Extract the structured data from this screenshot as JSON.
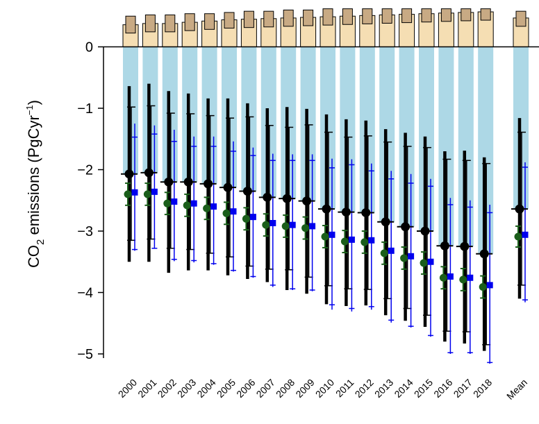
{
  "chart_data": {
    "type": "bar",
    "ylabel": {
      "prefix": "CO",
      "sub": "2",
      "middle": " emissions (PgCyr",
      "sup": "−1",
      "suffix": ")"
    },
    "ylim": [
      -5.2,
      0.62
    ],
    "yticks": [
      0,
      -1,
      -2,
      -3,
      -4,
      -5
    ],
    "ytick_labels": [
      "0",
      "−1",
      "−2",
      "−3",
      "−4",
      "−5"
    ],
    "categories": [
      "2000",
      "2001",
      "2002",
      "2003",
      "2004",
      "2005",
      "2006",
      "2007",
      "2008",
      "2009",
      "2010",
      "2011",
      "2012",
      "2013",
      "2014",
      "2015",
      "2016",
      "2017",
      "2018",
      "Mean"
    ],
    "colors": {
      "sink_bar": "#add8e6",
      "source_bar": "#f5deb3",
      "source_cap": "#c8aa84",
      "black_series": "#000000",
      "green_series": "#1a5e1a",
      "blue_series": "#0000ee",
      "zero_line": "#000000"
    },
    "series": [
      {
        "kind": "bar_positive",
        "values": [
          0.36,
          0.38,
          0.38,
          0.4,
          0.42,
          0.44,
          0.45,
          0.46,
          0.47,
          0.48,
          0.49,
          0.5,
          0.51,
          0.52,
          0.53,
          0.54,
          0.55,
          0.56,
          0.57,
          0.47
        ]
      },
      {
        "kind": "bar_cap_top",
        "values": [
          0.5,
          0.52,
          0.52,
          0.54,
          0.54,
          0.56,
          0.58,
          0.58,
          0.6,
          0.6,
          0.62,
          0.62,
          0.62,
          0.62,
          0.62,
          0.62,
          0.62,
          0.62,
          0.62,
          0.58
        ]
      },
      {
        "kind": "bar_negative",
        "values": [
          -2.07,
          -2.05,
          -2.2,
          -2.2,
          -2.23,
          -2.29,
          -2.35,
          -2.45,
          -2.47,
          -2.51,
          -2.64,
          -2.69,
          -2.7,
          -2.85,
          -2.93,
          -3.0,
          -3.24,
          -3.25,
          -3.37,
          -2.64
        ]
      },
      {
        "kind": "point_black",
        "values": [
          -2.07,
          -2.05,
          -2.2,
          -2.2,
          -2.23,
          -2.29,
          -2.35,
          -2.45,
          -2.47,
          -2.51,
          -2.64,
          -2.69,
          -2.7,
          -2.85,
          -2.93,
          -3.0,
          -3.24,
          -3.25,
          -3.37,
          -2.64
        ],
        "whisker_low": [
          -3.5,
          -3.5,
          -3.68,
          -3.64,
          -3.64,
          -3.72,
          -3.78,
          -3.83,
          -3.96,
          -4.02,
          -4.19,
          -4.22,
          -4.21,
          -4.37,
          -4.46,
          -4.56,
          -4.8,
          -4.83,
          -4.95,
          -4.1
        ],
        "whisker_high": [
          -0.64,
          -0.6,
          -0.72,
          -0.76,
          -0.84,
          -0.84,
          -0.92,
          -1.0,
          -0.98,
          -1.01,
          -1.1,
          -1.18,
          -1.2,
          -1.34,
          -1.4,
          -1.46,
          -1.7,
          -1.69,
          -1.8,
          -1.16
        ],
        "inner_low": [
          -3.15,
          -3.13,
          -3.28,
          -3.3,
          -3.36,
          -3.42,
          -3.57,
          -3.62,
          -3.63,
          -3.75,
          -3.89,
          -3.94,
          -3.95,
          -4.1,
          -4.26,
          -4.37,
          -4.63,
          -4.64,
          -4.85,
          -3.88
        ],
        "inner_high": [
          -0.98,
          -0.96,
          -1.08,
          -1.09,
          -1.12,
          -1.16,
          -1.14,
          -1.28,
          -1.31,
          -1.27,
          -1.39,
          -1.47,
          -1.45,
          -1.55,
          -1.62,
          -1.64,
          -1.83,
          -1.85,
          -1.9,
          -1.39
        ]
      },
      {
        "kind": "point_green",
        "values": [
          -2.4,
          -2.4,
          -2.55,
          -2.58,
          -2.63,
          -2.71,
          -2.8,
          -2.9,
          -2.92,
          -2.95,
          -3.09,
          -3.17,
          -3.18,
          -3.36,
          -3.44,
          -3.52,
          -3.76,
          -3.79,
          -3.91,
          -3.09
        ],
        "err_low": [
          -2.58,
          -2.58,
          -2.73,
          -2.76,
          -2.81,
          -2.89,
          -2.98,
          -3.08,
          -3.1,
          -3.13,
          -3.27,
          -3.35,
          -3.36,
          -3.54,
          -3.62,
          -3.7,
          -3.94,
          -3.97,
          -4.09,
          -3.26
        ],
        "err_high": [
          -2.22,
          -2.22,
          -2.37,
          -2.4,
          -2.45,
          -2.53,
          -2.62,
          -2.72,
          -2.74,
          -2.77,
          -2.91,
          -2.99,
          -3.0,
          -3.18,
          -3.26,
          -3.34,
          -3.58,
          -3.61,
          -3.73,
          -2.92
        ]
      },
      {
        "kind": "point_blue",
        "values": [
          -2.37,
          -2.36,
          -2.52,
          -2.55,
          -2.6,
          -2.68,
          -2.77,
          -2.87,
          -2.9,
          -2.92,
          -3.06,
          -3.14,
          -3.15,
          -3.32,
          -3.41,
          -3.5,
          -3.74,
          -3.76,
          -3.88,
          -3.06
        ],
        "whisker_low": [
          -3.32,
          -3.29,
          -3.49,
          -3.51,
          -3.55,
          -3.66,
          -3.76,
          -3.91,
          -3.96,
          -3.98,
          -4.28,
          -4.31,
          -4.28,
          -4.49,
          -4.57,
          -4.72,
          -5.0,
          -5.0,
          -5.16,
          -4.16
        ],
        "whisker_high": [
          -1.25,
          -1.28,
          -1.35,
          -1.46,
          -1.46,
          -1.54,
          -1.64,
          -1.74,
          -1.75,
          -1.75,
          -1.82,
          -1.83,
          -1.9,
          -2.02,
          -2.07,
          -2.15,
          -2.46,
          -2.5,
          -2.57,
          -1.88
        ],
        "inner_low": [
          -3.3,
          -3.28,
          -3.46,
          -3.48,
          -3.53,
          -3.64,
          -3.74,
          -3.88,
          -3.94,
          -3.96,
          -4.2,
          -4.26,
          -4.23,
          -4.45,
          -4.55,
          -4.7,
          -4.98,
          -4.98,
          -5.14,
          -4.12
        ],
        "inner_high": [
          -1.47,
          -1.42,
          -1.54,
          -1.62,
          -1.62,
          -1.7,
          -1.77,
          -1.85,
          -1.85,
          -1.85,
          -1.97,
          -1.92,
          -2.02,
          -2.15,
          -2.22,
          -2.27,
          -2.57,
          -2.61,
          -2.7,
          -1.96
        ]
      }
    ]
  }
}
